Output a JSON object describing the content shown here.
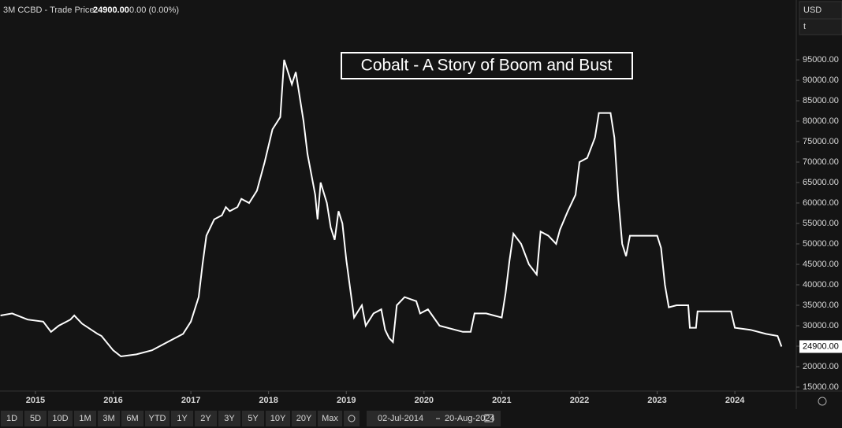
{
  "header": {
    "instrument": "3M CCBD - Trade Price",
    "price": "24900.00",
    "change": "0.00 (0.00%)",
    "currency": "USD",
    "unit": "t"
  },
  "toolbar": {
    "ranges": [
      "1D",
      "5D",
      "10D",
      "1M",
      "3M",
      "6M",
      "YTD",
      "1Y",
      "2Y",
      "3Y",
      "5Y",
      "10Y",
      "20Y",
      "Max"
    ],
    "start_date": "02-Jul-2014",
    "end_date": "20-Aug-2024"
  },
  "chart_data": {
    "type": "line",
    "title": "Cobalt - A Story of Boom and Bust",
    "last_price_label": "24900.00",
    "x": [
      2014.55,
      2014.7,
      2014.9,
      2015.1,
      2015.2,
      2015.3,
      2015.45,
      2015.5,
      2015.6,
      2015.8,
      2015.85,
      2016.0,
      2016.1,
      2016.3,
      2016.5,
      2016.7,
      2016.9,
      2017.0,
      2017.1,
      2017.15,
      2017.2,
      2017.3,
      2017.4,
      2017.45,
      2017.5,
      2017.6,
      2017.65,
      2017.75,
      2017.85,
      2017.95,
      2018.05,
      2018.15,
      2018.2,
      2018.3,
      2018.35,
      2018.45,
      2018.5,
      2018.6,
      2018.63,
      2018.67,
      2018.75,
      2018.8,
      2018.85,
      2018.9,
      2018.95,
      2019.0,
      2019.1,
      2019.2,
      2019.25,
      2019.35,
      2019.45,
      2019.5,
      2019.55,
      2019.6,
      2019.65,
      2019.75,
      2019.9,
      2019.95,
      2020.05,
      2020.2,
      2020.5,
      2020.6,
      2020.65,
      2020.8,
      2020.9,
      2021.0,
      2021.05,
      2021.1,
      2021.15,
      2021.25,
      2021.35,
      2021.45,
      2021.5,
      2021.6,
      2021.7,
      2021.75,
      2021.85,
      2021.95,
      2022.0,
      2022.1,
      2022.2,
      2022.25,
      2022.4,
      2022.45,
      2022.5,
      2022.55,
      2022.6,
      2022.65,
      2023.0,
      2023.05,
      2023.1,
      2023.15,
      2023.25,
      2023.4,
      2023.42,
      2023.5,
      2023.52,
      2023.8,
      2023.95,
      2024.0,
      2024.2,
      2024.4,
      2024.55,
      2024.6
    ],
    "series": [
      {
        "name": "3M CCBD",
        "color": "#ffffff",
        "values": [
          32500,
          33000,
          31500,
          31000,
          28500,
          30000,
          31500,
          32500,
          30500,
          28000,
          27500,
          24000,
          22500,
          23000,
          24000,
          26000,
          28000,
          31000,
          37000,
          45000,
          52000,
          56000,
          57000,
          59000,
          58000,
          59000,
          61000,
          60000,
          63000,
          70000,
          78000,
          81000,
          95000,
          89000,
          92000,
          80000,
          72000,
          62000,
          56000,
          65000,
          60000,
          54000,
          51000,
          58000,
          55000,
          46000,
          32000,
          35000,
          30000,
          33000,
          34000,
          29000,
          27000,
          26000,
          35000,
          37000,
          36000,
          33000,
          34000,
          30000,
          28500,
          28500,
          33000,
          33000,
          32500,
          32000,
          38000,
          46000,
          52500,
          50000,
          45000,
          42500,
          53000,
          52000,
          50000,
          53500,
          58000,
          62000,
          70000,
          71000,
          76000,
          82000,
          82000,
          76000,
          61000,
          50000,
          47000,
          52000,
          52000,
          49000,
          40000,
          34500,
          35000,
          35000,
          29500,
          29500,
          33500,
          33500,
          33500,
          29500,
          29000,
          28000,
          27500,
          24900
        ]
      }
    ],
    "xlim": [
      2014.544,
      2024.79
    ],
    "xticks": [
      2015,
      2016,
      2017,
      2018,
      2019,
      2020,
      2021,
      2022,
      2023,
      2024
    ],
    "ylim": [
      14038,
      109615
    ],
    "yticks": [
      {
        "value": 15000,
        "label": "15000.00"
      },
      {
        "value": 20000,
        "label": "20000.00"
      },
      {
        "value": 25000,
        "label": "25000.00"
      },
      {
        "value": 30000,
        "label": "30000.00"
      },
      {
        "value": 35000,
        "label": "35000.00"
      },
      {
        "value": 40000,
        "label": "40000.00"
      },
      {
        "value": 45000,
        "label": "45000.00"
      },
      {
        "value": 50000,
        "label": "50000.00"
      },
      {
        "value": 55000,
        "label": "55000.00"
      },
      {
        "value": 60000,
        "label": "60000.00"
      },
      {
        "value": 65000,
        "label": "65000.00"
      },
      {
        "value": 70000,
        "label": "70000.00"
      },
      {
        "value": 75000,
        "label": "75000.00"
      },
      {
        "value": 80000,
        "label": "80000.00"
      },
      {
        "value": 85000,
        "label": "85000.00"
      },
      {
        "value": 90000,
        "label": "90000.00"
      },
      {
        "value": 95000,
        "label": "95000.00"
      }
    ]
  }
}
